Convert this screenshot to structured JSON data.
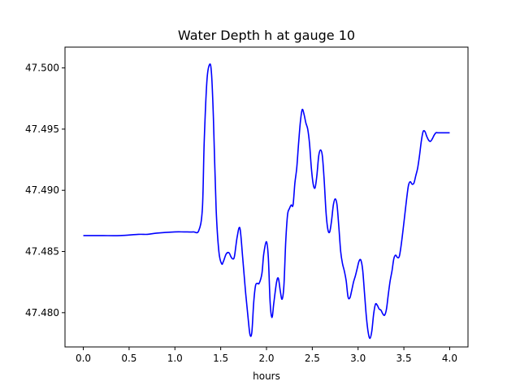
{
  "chart_data": {
    "type": "line",
    "title": "Water Depth h at gauge 10",
    "xlabel": "hours",
    "ylabel": "",
    "xlim": [
      -0.2,
      4.2
    ],
    "ylim": [
      47.4772,
      47.5017
    ],
    "xticks": [
      0.0,
      0.5,
      1.0,
      1.5,
      2.0,
      2.5,
      3.0,
      3.5,
      4.0
    ],
    "xtick_labels": [
      "0.0",
      "0.5",
      "1.0",
      "1.5",
      "2.0",
      "2.5",
      "3.0",
      "3.5",
      "4.0"
    ],
    "yticks": [
      47.48,
      47.485,
      47.49,
      47.495,
      47.5
    ],
    "ytick_labels": [
      "47.480",
      "47.485",
      "47.490",
      "47.495",
      "47.500"
    ],
    "grid": false,
    "series": [
      {
        "color": "#0000ff",
        "x": [
          0.0,
          0.2,
          0.4,
          0.6,
          0.7,
          0.8,
          1.0,
          1.1,
          1.2,
          1.26,
          1.3,
          1.32,
          1.35,
          1.38,
          1.4,
          1.42,
          1.45,
          1.48,
          1.51,
          1.53,
          1.56,
          1.59,
          1.61,
          1.63,
          1.65,
          1.68,
          1.71,
          1.74,
          1.77,
          1.8,
          1.82,
          1.84,
          1.86,
          1.88,
          1.9,
          1.92,
          1.95,
          1.97,
          2.0,
          2.02,
          2.04,
          2.06,
          2.08,
          2.11,
          2.13,
          2.15,
          2.17,
          2.19,
          2.21,
          2.23,
          2.25,
          2.27,
          2.29,
          2.31,
          2.33,
          2.35,
          2.37,
          2.39,
          2.41,
          2.43,
          2.45,
          2.47,
          2.49,
          2.51,
          2.53,
          2.55,
          2.57,
          2.59,
          2.61,
          2.63,
          2.65,
          2.67,
          2.69,
          2.71,
          2.73,
          2.75,
          2.77,
          2.79,
          2.81,
          2.83,
          2.85,
          2.87,
          2.89,
          2.91,
          2.93,
          2.95,
          2.97,
          2.99,
          3.01,
          3.03,
          3.05,
          3.07,
          3.09,
          3.11,
          3.13,
          3.15,
          3.17,
          3.19,
          3.21,
          3.23,
          3.25,
          3.27,
          3.29,
          3.31,
          3.33,
          3.35,
          3.37,
          3.39,
          3.41,
          3.43,
          3.45,
          3.47,
          3.49,
          3.51,
          3.53,
          3.55,
          3.57,
          3.59,
          3.61,
          3.63,
          3.65,
          3.67,
          3.69,
          3.71,
          3.73,
          3.75,
          3.77,
          3.79,
          3.81,
          3.83,
          3.85,
          3.87,
          3.89,
          3.91,
          3.93,
          3.95,
          3.97,
          4.0
        ],
        "y": [
          47.4863,
          47.4863,
          47.4863,
          47.4864,
          47.4864,
          47.4865,
          47.4866,
          47.4866,
          47.4866,
          47.4867,
          47.4885,
          47.494,
          47.499,
          47.5003,
          47.4995,
          47.496,
          47.4885,
          47.485,
          47.484,
          47.4842,
          47.4848,
          47.4849,
          47.4846,
          47.4844,
          47.4846,
          47.4862,
          47.4869,
          47.4845,
          47.4818,
          47.4795,
          47.4782,
          47.4784,
          47.4808,
          47.4822,
          47.4824,
          47.4824,
          47.4832,
          47.4848,
          47.4858,
          47.4845,
          47.4808,
          47.4796,
          47.4808,
          47.4825,
          47.4828,
          47.4818,
          47.4811,
          47.4822,
          47.4858,
          47.488,
          47.4885,
          47.4888,
          47.4888,
          47.4906,
          47.4918,
          47.4938,
          47.4956,
          47.4966,
          47.4962,
          47.4955,
          47.495,
          47.4938,
          47.4918,
          47.4905,
          47.4902,
          47.4912,
          47.4928,
          47.4933,
          47.4928,
          47.4908,
          47.4882,
          47.4868,
          47.4866,
          47.4875,
          47.4888,
          47.4893,
          47.4888,
          47.487,
          47.485,
          47.484,
          47.4834,
          47.4826,
          47.4813,
          47.4812,
          47.4818,
          47.4825,
          47.483,
          47.4836,
          47.4842,
          47.4843,
          47.4835,
          47.4816,
          47.4797,
          47.4784,
          47.4779,
          47.4785,
          47.4799,
          47.4807,
          47.4806,
          47.4803,
          47.4802,
          47.4799,
          47.4798,
          47.4803,
          47.4815,
          47.4826,
          47.4834,
          47.4844,
          47.4847,
          47.4845,
          47.4846,
          47.4855,
          47.4867,
          47.488,
          47.4893,
          47.4904,
          47.4907,
          47.4905,
          47.4906,
          47.4912,
          47.4918,
          47.4928,
          47.494,
          47.4948,
          47.4948,
          47.4944,
          47.4941,
          47.494,
          47.4942,
          47.4945,
          47.4947,
          47.4947,
          47.4947,
          47.4947,
          47.4947,
          47.4947,
          47.4947,
          47.4947
        ]
      }
    ]
  }
}
